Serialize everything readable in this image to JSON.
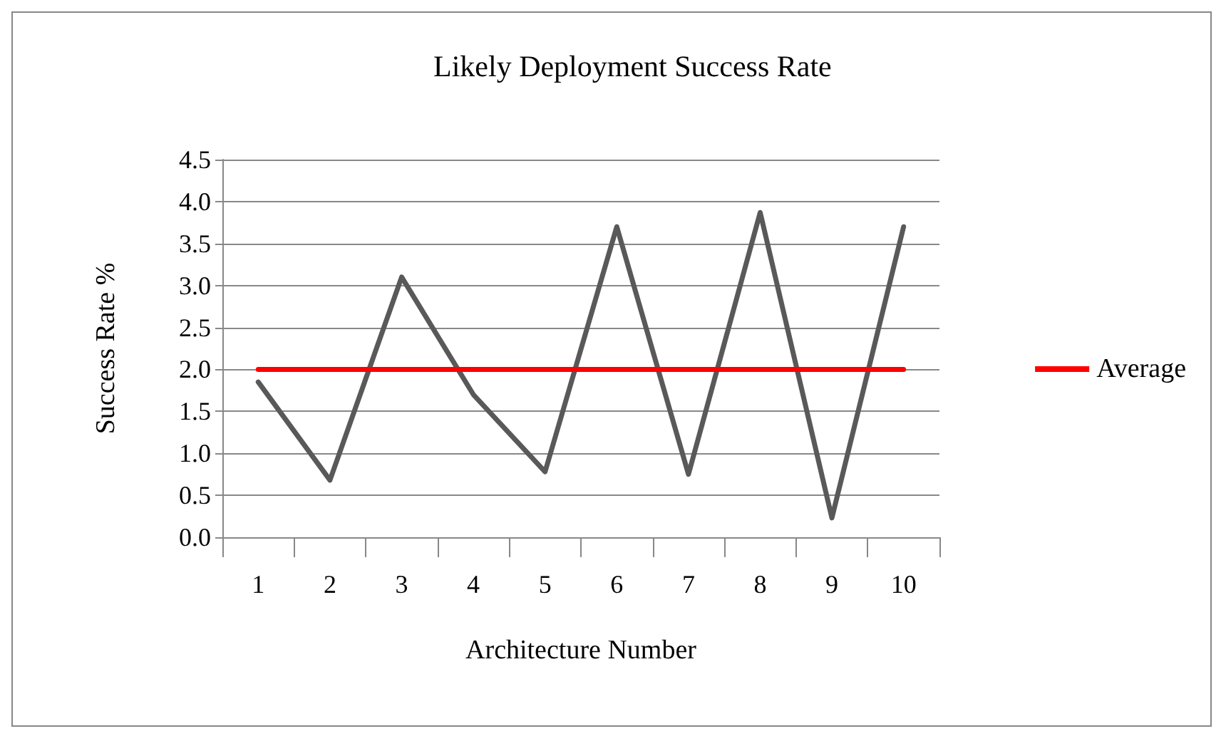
{
  "chart_data": {
    "type": "line",
    "title": "Likely Deployment Success Rate",
    "xlabel": "Architecture Number",
    "ylabel": "Success Rate %",
    "categories": [
      "1",
      "2",
      "3",
      "4",
      "5",
      "6",
      "7",
      "8",
      "9",
      "10"
    ],
    "series": [
      {
        "color": "#595959",
        "values": [
          1.85,
          0.68,
          3.1,
          1.7,
          0.78,
          3.7,
          0.75,
          3.87,
          0.23,
          3.7
        ]
      },
      {
        "name": "Average",
        "color": "#ff0000",
        "values": [
          2.0,
          2.0,
          2.0,
          2.0,
          2.0,
          2.0,
          2.0,
          2.0,
          2.0,
          2.0
        ]
      }
    ],
    "ylim": [
      0,
      4.5
    ],
    "yticks": [
      {
        "value": 0,
        "label": "0.0"
      },
      {
        "value": 0.5,
        "label": "0.5"
      },
      {
        "value": 1,
        "label": "1.0"
      },
      {
        "value": 1.5,
        "label": "1.5"
      },
      {
        "value": 2,
        "label": "2.0"
      },
      {
        "value": 2.5,
        "label": "2.5"
      },
      {
        "value": 3,
        "label": "3.0"
      },
      {
        "value": 3.5,
        "label": "3.5"
      },
      {
        "value": 4,
        "label": "4.0"
      },
      {
        "value": 4.5,
        "label": "4.5"
      }
    ],
    "grid": "y",
    "legend": "right",
    "marker": "none",
    "line_style": "solid"
  }
}
